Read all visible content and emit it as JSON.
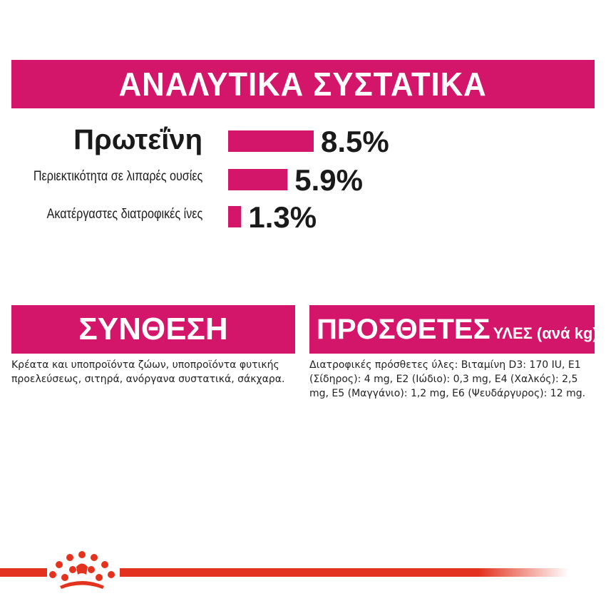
{
  "header": {
    "title": "ΑΝΑΛΥΤΙΚΑ ΣΥΣΤΑΤΙΚΑ"
  },
  "colors": {
    "accent": "#d4166b",
    "brand_red": "#e3331e",
    "text": "#1a1a1a"
  },
  "chart_data": {
    "type": "bar",
    "orientation": "horizontal",
    "categories": [
      "Πρωτεΐνη",
      "Περιεκτικότητα σε λιπαρές ουσίες",
      "Ακατέργαστες διατροφικές ίνες"
    ],
    "values": [
      8.5,
      5.9,
      1.3
    ],
    "value_labels": [
      "8.5%",
      "5.9%",
      "1.3%"
    ],
    "unit": "%",
    "xlim": [
      0,
      8.5
    ],
    "grid": false,
    "color": "#d4166b"
  },
  "composition": {
    "title": "ΣΥΝΘΕΣΗ",
    "text": "Κρέατα και υποπροϊόντα ζώων, υποπροϊόντα φυτικής προελεύσεως, σιτηρά, ανόργανα συστατικά, σάκχαρα."
  },
  "additives": {
    "title": "ΠΡΟΣΘΕΤΕΣ",
    "subtitle": "ΥΛΕΣ (ανά kg)",
    "text": "Διατροφικές πρόσθετες ύλες: Βιταμίνη D3: 170 IU, E1 (Σίδηρος): 4 mg, E2 (Ιώδιο): 0,3 mg, E4 (Χαλκός): 2,5 mg, E5 (Μαγγάνιο): 1,2 mg, E6 (Ψευδάργυρος): 12 mg."
  },
  "footer": {
    "logo_icon": "crown-icon"
  }
}
